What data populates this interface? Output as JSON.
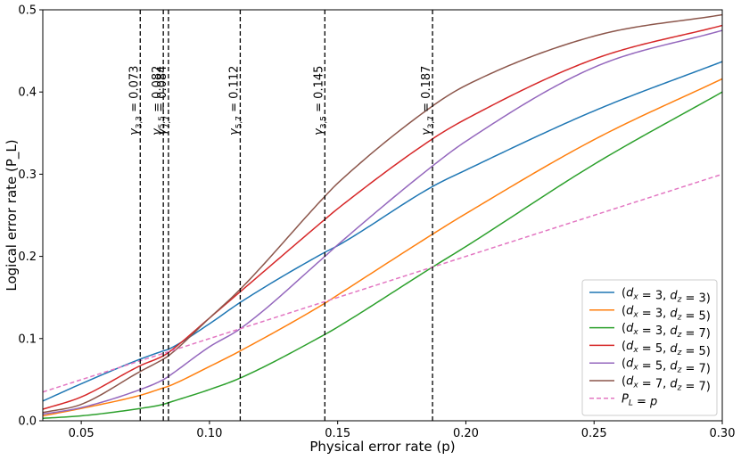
{
  "chart_data": {
    "type": "line",
    "xlabel": "Physical error rate (p)",
    "ylabel": "Logical error rate (P_L)",
    "xlim": [
      0.035,
      0.3
    ],
    "ylim": [
      0,
      0.5
    ],
    "x_ticks": [
      0.05,
      0.1,
      0.15,
      0.2,
      0.25,
      0.3
    ],
    "x_tick_labels": [
      "0.05",
      "0.10",
      "0.15",
      "0.20",
      "0.25",
      "0.30"
    ],
    "y_ticks": [
      0,
      0.1,
      0.2,
      0.3,
      0.4,
      0.5
    ],
    "y_tick_labels": [
      "0.0",
      "0.1",
      "0.2",
      "0.3",
      "0.4",
      "0.5"
    ],
    "legend_position": "lower-right",
    "grid": false,
    "x": [
      0.035,
      0.05,
      0.073,
      0.082,
      0.084,
      0.1,
      0.112,
      0.145,
      0.15,
      0.187,
      0.2,
      0.25,
      0.3
    ],
    "series": [
      {
        "name": "(d_x = 3, d_z = 3)",
        "color": "#1f77b4",
        "dash": "solid",
        "values": [
          0.024,
          0.045,
          0.075,
          0.085,
          0.087,
          0.118,
          0.144,
          0.205,
          0.213,
          0.285,
          0.305,
          0.377,
          0.437
        ]
      },
      {
        "name": "(d_x = 3, d_z = 5)",
        "color": "#ff7f0e",
        "dash": "solid",
        "values": [
          0.006,
          0.015,
          0.031,
          0.04,
          0.042,
          0.066,
          0.085,
          0.143,
          0.153,
          0.227,
          0.252,
          0.342,
          0.416
        ]
      },
      {
        "name": "(d_x = 3, d_z = 7)",
        "color": "#2ca02c",
        "dash": "solid",
        "values": [
          0.003,
          0.006,
          0.015,
          0.02,
          0.022,
          0.038,
          0.052,
          0.105,
          0.114,
          0.187,
          0.212,
          0.312,
          0.4
        ]
      },
      {
        "name": "(d_x = 5, d_z = 5)",
        "color": "#d62728",
        "dash": "solid",
        "values": [
          0.014,
          0.029,
          0.067,
          0.079,
          0.083,
          0.125,
          0.157,
          0.245,
          0.258,
          0.343,
          0.367,
          0.44,
          0.481
        ]
      },
      {
        "name": "(d_x = 5, d_z = 7)",
        "color": "#9467bd",
        "dash": "solid",
        "values": [
          0.008,
          0.016,
          0.038,
          0.05,
          0.054,
          0.09,
          0.112,
          0.2,
          0.214,
          0.31,
          0.34,
          0.43,
          0.475
        ]
      },
      {
        "name": "(d_x = 7, d_z = 7)",
        "color": "#8c564b",
        "dash": "solid",
        "values": [
          0.01,
          0.02,
          0.06,
          0.075,
          0.079,
          0.125,
          0.16,
          0.273,
          0.289,
          0.383,
          0.408,
          0.468,
          0.494
        ]
      },
      {
        "name": "P_L = p",
        "color": "#e377c2",
        "dash": "dashed",
        "values": [
          0.035,
          0.05,
          0.073,
          0.082,
          0.084,
          0.1,
          0.112,
          0.145,
          0.15,
          0.187,
          0.2,
          0.25,
          0.3
        ]
      }
    ],
    "vlines": [
      {
        "x": 0.073,
        "sub": "3,3",
        "value": "0.073"
      },
      {
        "x": 0.082,
        "sub": "5,5",
        "value": "0.082"
      },
      {
        "x": 0.084,
        "sub": "7,7",
        "value": "0.084"
      },
      {
        "x": 0.112,
        "sub": "5,7",
        "value": "0.112"
      },
      {
        "x": 0.145,
        "sub": "3,5",
        "value": "0.145"
      },
      {
        "x": 0.187,
        "sub": "3,7",
        "value": "0.187"
      }
    ]
  }
}
